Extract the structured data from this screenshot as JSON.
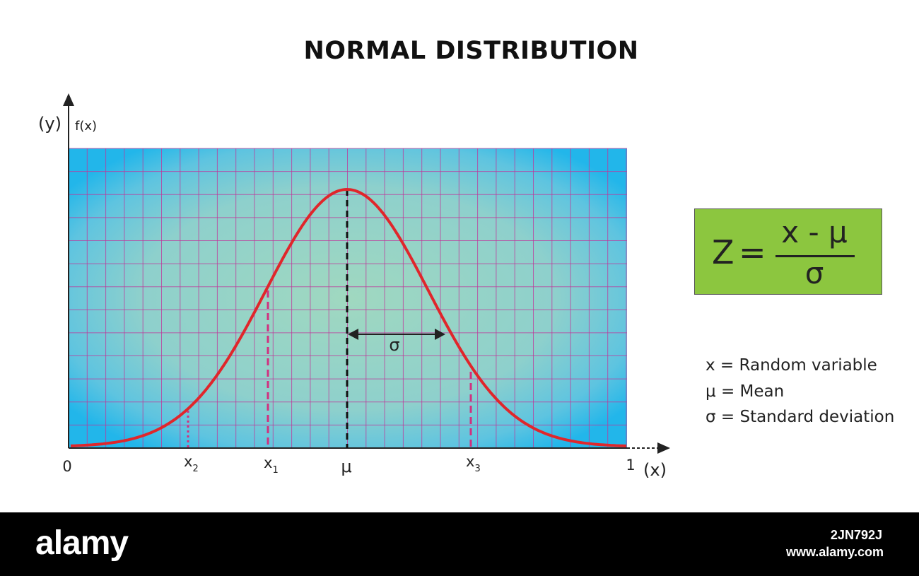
{
  "title": "NORMAL DISTRIBUTION",
  "axes": {
    "y_label": "(y)",
    "y_func": "f(x)",
    "x_label": "(x)",
    "x_start": "0",
    "x_end": "1"
  },
  "markers": {
    "x2": {
      "base": "x",
      "sub": "2"
    },
    "x1": {
      "base": "x",
      "sub": "1"
    },
    "mu": "μ",
    "x3": {
      "base": "x",
      "sub": "3"
    }
  },
  "sigma_label": "σ",
  "formula": {
    "lhs": "Z",
    "eq": "=",
    "numerator": "x - μ",
    "denominator": "σ"
  },
  "legend": [
    "x = Random variable",
    "μ = Mean",
    "σ = Standard deviation"
  ],
  "footer": {
    "logo": "alamy",
    "image_id": "2JN792J",
    "url": "www.alamy.com"
  },
  "colors": {
    "curve": "#e0262b",
    "grid": "#c0359a",
    "marker_lines": "#d1307f",
    "formula_bg": "#8cc63f",
    "plot_edge": "#2bb8ea",
    "plot_center": "#9cd6c0"
  }
}
